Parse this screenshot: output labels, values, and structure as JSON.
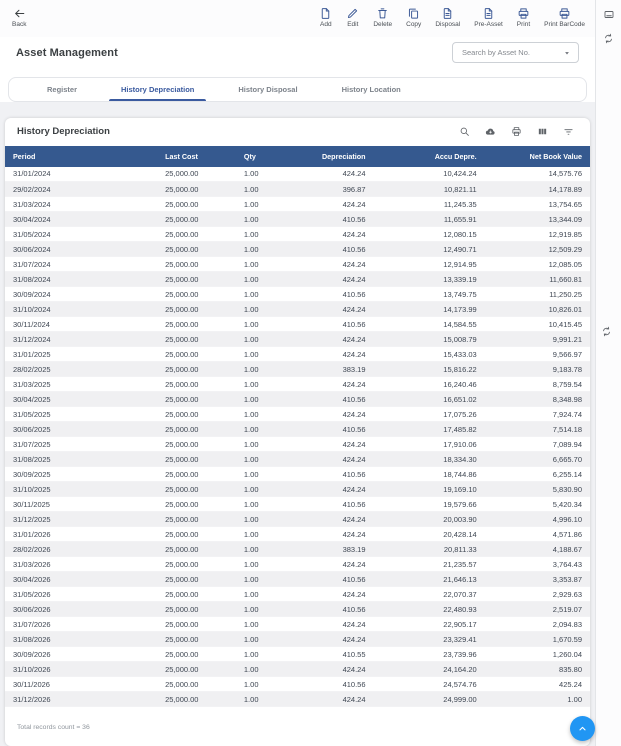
{
  "toolbar": {
    "back_label": "Back",
    "actions": [
      {
        "name": "add",
        "label": "Add",
        "icon": "add-document-icon"
      },
      {
        "name": "edit",
        "label": "Edit",
        "icon": "edit-icon"
      },
      {
        "name": "delete",
        "label": "Delete",
        "icon": "delete-icon"
      },
      {
        "name": "copy",
        "label": "Copy",
        "icon": "copy-icon"
      },
      {
        "name": "disposal",
        "label": "Disposal",
        "icon": "disposal-document-icon"
      },
      {
        "name": "pre-asset",
        "label": "Pre-Asset",
        "icon": "pre-asset-document-icon"
      },
      {
        "name": "print",
        "label": "Print",
        "icon": "print-icon"
      },
      {
        "name": "print-barcode",
        "label": "Print BarCode",
        "icon": "print-barcode-icon"
      }
    ]
  },
  "header": {
    "title": "Asset Management",
    "search_placeholder": "Search by Asset No."
  },
  "tabs": {
    "items": [
      {
        "label": "Register",
        "active": false
      },
      {
        "label": "History Depreciation",
        "active": true
      },
      {
        "label": "History Disposal",
        "active": false
      },
      {
        "label": "History Location",
        "active": false
      }
    ]
  },
  "panel": {
    "title": "History Depreciation",
    "toolbar_icons": [
      "search-icon",
      "export-icon",
      "print-icon",
      "columns-icon",
      "filter-icon"
    ],
    "columns": [
      "Period",
      "Last Cost",
      "Qty",
      "Depreciation",
      "Accu Depre.",
      "Net Book Value"
    ],
    "rows": [
      [
        "31/01/2024",
        "25,000.00",
        "1.00",
        "424.24",
        "10,424.24",
        "14,575.76"
      ],
      [
        "29/02/2024",
        "25,000.00",
        "1.00",
        "396.87",
        "10,821.11",
        "14,178.89"
      ],
      [
        "31/03/2024",
        "25,000.00",
        "1.00",
        "424.24",
        "11,245.35",
        "13,754.65"
      ],
      [
        "30/04/2024",
        "25,000.00",
        "1.00",
        "410.56",
        "11,655.91",
        "13,344.09"
      ],
      [
        "31/05/2024",
        "25,000.00",
        "1.00",
        "424.24",
        "12,080.15",
        "12,919.85"
      ],
      [
        "30/06/2024",
        "25,000.00",
        "1.00",
        "410.56",
        "12,490.71",
        "12,509.29"
      ],
      [
        "31/07/2024",
        "25,000.00",
        "1.00",
        "424.24",
        "12,914.95",
        "12,085.05"
      ],
      [
        "31/08/2024",
        "25,000.00",
        "1.00",
        "424.24",
        "13,339.19",
        "11,660.81"
      ],
      [
        "30/09/2024",
        "25,000.00",
        "1.00",
        "410.56",
        "13,749.75",
        "11,250.25"
      ],
      [
        "31/10/2024",
        "25,000.00",
        "1.00",
        "424.24",
        "14,173.99",
        "10,826.01"
      ],
      [
        "30/11/2024",
        "25,000.00",
        "1.00",
        "410.56",
        "14,584.55",
        "10,415.45"
      ],
      [
        "31/12/2024",
        "25,000.00",
        "1.00",
        "424.24",
        "15,008.79",
        "9,991.21"
      ],
      [
        "31/01/2025",
        "25,000.00",
        "1.00",
        "424.24",
        "15,433.03",
        "9,566.97"
      ],
      [
        "28/02/2025",
        "25,000.00",
        "1.00",
        "383.19",
        "15,816.22",
        "9,183.78"
      ],
      [
        "31/03/2025",
        "25,000.00",
        "1.00",
        "424.24",
        "16,240.46",
        "8,759.54"
      ],
      [
        "30/04/2025",
        "25,000.00",
        "1.00",
        "410.56",
        "16,651.02",
        "8,348.98"
      ],
      [
        "31/05/2025",
        "25,000.00",
        "1.00",
        "424.24",
        "17,075.26",
        "7,924.74"
      ],
      [
        "30/06/2025",
        "25,000.00",
        "1.00",
        "410.56",
        "17,485.82",
        "7,514.18"
      ],
      [
        "31/07/2025",
        "25,000.00",
        "1.00",
        "424.24",
        "17,910.06",
        "7,089.94"
      ],
      [
        "31/08/2025",
        "25,000.00",
        "1.00",
        "424.24",
        "18,334.30",
        "6,665.70"
      ],
      [
        "30/09/2025",
        "25,000.00",
        "1.00",
        "410.56",
        "18,744.86",
        "6,255.14"
      ],
      [
        "31/10/2025",
        "25,000.00",
        "1.00",
        "424.24",
        "19,169.10",
        "5,830.90"
      ],
      [
        "30/11/2025",
        "25,000.00",
        "1.00",
        "410.56",
        "19,579.66",
        "5,420.34"
      ],
      [
        "31/12/2025",
        "25,000.00",
        "1.00",
        "424.24",
        "20,003.90",
        "4,996.10"
      ],
      [
        "31/01/2026",
        "25,000.00",
        "1.00",
        "424.24",
        "20,428.14",
        "4,571.86"
      ],
      [
        "28/02/2026",
        "25,000.00",
        "1.00",
        "383.19",
        "20,811.33",
        "4,188.67"
      ],
      [
        "31/03/2026",
        "25,000.00",
        "1.00",
        "424.24",
        "21,235.57",
        "3,764.43"
      ],
      [
        "30/04/2026",
        "25,000.00",
        "1.00",
        "410.56",
        "21,646.13",
        "3,353.87"
      ],
      [
        "31/05/2026",
        "25,000.00",
        "1.00",
        "424.24",
        "22,070.37",
        "2,929.63"
      ],
      [
        "30/06/2026",
        "25,000.00",
        "1.00",
        "410.56",
        "22,480.93",
        "2,519.07"
      ],
      [
        "31/07/2026",
        "25,000.00",
        "1.00",
        "424.24",
        "22,905.17",
        "2,094.83"
      ],
      [
        "31/08/2026",
        "25,000.00",
        "1.00",
        "424.24",
        "23,329.41",
        "1,670.59"
      ],
      [
        "30/09/2026",
        "25,000.00",
        "1.00",
        "410.55",
        "23,739.96",
        "1,260.04"
      ],
      [
        "31/10/2026",
        "25,000.00",
        "1.00",
        "424.24",
        "24,164.20",
        "835.80"
      ],
      [
        "30/11/2026",
        "25,000.00",
        "1.00",
        "410.56",
        "24,574.76",
        "425.24"
      ],
      [
        "31/12/2026",
        "25,000.00",
        "1.00",
        "424.24",
        "24,999.00",
        "1.00"
      ]
    ],
    "footer_text": "Total records count = 36"
  },
  "side_strip": {
    "icons": [
      "comment-icon",
      "sync-icon",
      "sync-icon"
    ]
  },
  "colors": {
    "accent_blue": "#3a5a9f",
    "table_header_blue": "#35598f",
    "fab_blue": "#2196f3",
    "row_alt_gray": "#f0f0f2"
  }
}
